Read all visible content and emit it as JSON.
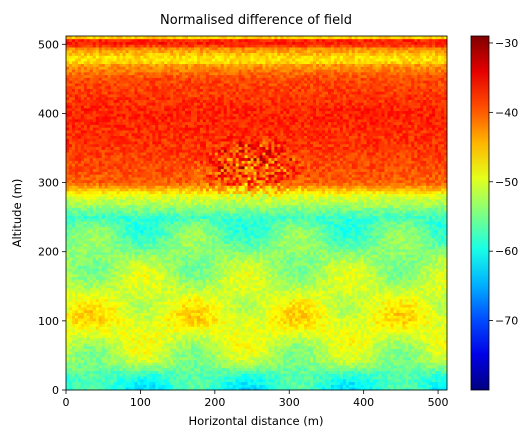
{
  "chart_data": {
    "type": "heatmap",
    "title": "Normalised difference of field",
    "xlabel": "Horizontal distance (m)",
    "ylabel": "Altitude (m)",
    "xlim": [
      0,
      512
    ],
    "ylim": [
      0,
      512
    ],
    "xticks": [
      0,
      100,
      200,
      300,
      400,
      500
    ],
    "yticks": [
      0,
      100,
      200,
      300,
      400,
      500
    ],
    "colormap": "jet",
    "colorbar": {
      "range": [
        -80,
        -29
      ],
      "ticks": [
        -30,
        -40,
        -50,
        -60,
        -70
      ]
    },
    "field_profile": {
      "altitude": [
        0,
        20,
        40,
        100,
        200,
        250,
        270,
        280,
        300,
        350,
        400,
        450,
        480,
        495,
        505,
        512
      ],
      "value": [
        -60,
        -58,
        -53,
        -48,
        -54,
        -58,
        -52,
        -50,
        -40,
        -38,
        -37,
        -39,
        -45,
        -40,
        -35,
        -50
      ]
    },
    "grid": false,
    "legend": "none"
  }
}
